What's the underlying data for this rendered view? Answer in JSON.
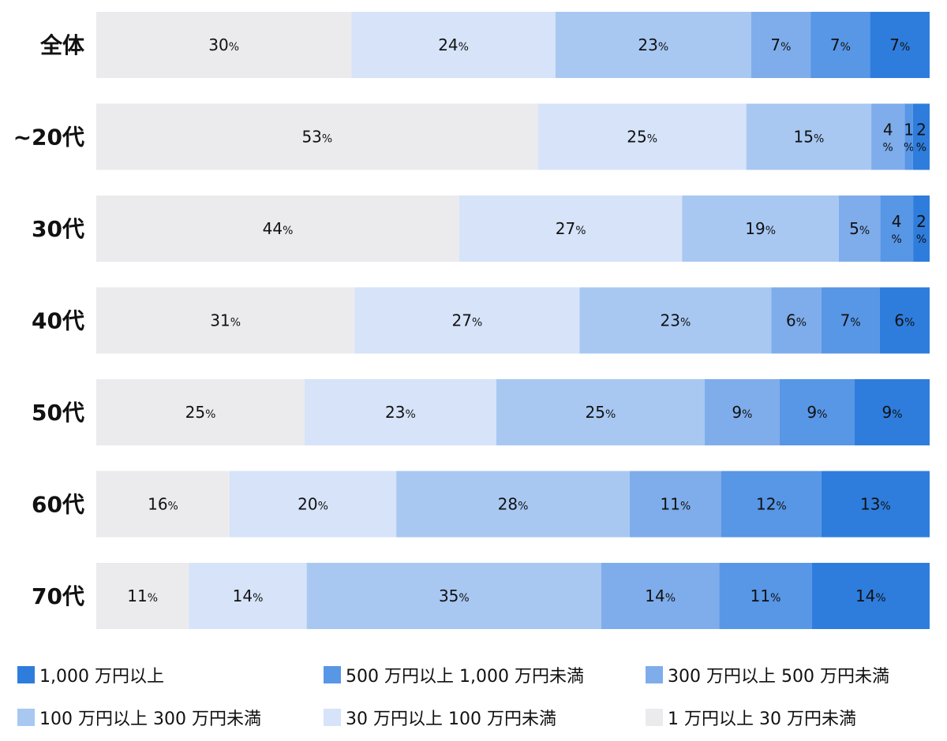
{
  "chart_data": {
    "type": "bar",
    "orientation": "horizontal",
    "stacked": true,
    "categories": [
      "全体",
      "~20代",
      "30代",
      "40代",
      "50代",
      "60代",
      "70代"
    ],
    "series": [
      {
        "name": "1万円以上30万円未満",
        "color": "#ebebed",
        "values": [
          30,
          53,
          44,
          31,
          25,
          16,
          11
        ]
      },
      {
        "name": "30万円以上100万円未満",
        "color": "#d6e3f9",
        "values": [
          24,
          25,
          27,
          27,
          23,
          20,
          14
        ]
      },
      {
        "name": "100万円以上300万円未満",
        "color": "#a8c8f2",
        "values": [
          23,
          15,
          19,
          23,
          25,
          28,
          35
        ]
      },
      {
        "name": "300万円以上500万円未満",
        "color": "#7fadeb",
        "values": [
          7,
          4,
          5,
          6,
          9,
          11,
          14
        ]
      },
      {
        "name": "500万円以上1,000万円未満",
        "color": "#5896e6",
        "values": [
          7,
          1,
          4,
          7,
          9,
          12,
          11
        ]
      },
      {
        "name": "1,000万円以上",
        "color": "#2e7ddd",
        "values": [
          7,
          2,
          2,
          6,
          9,
          13,
          14
        ]
      }
    ],
    "value_suffix": "%",
    "xlim": [
      0,
      100
    ],
    "grid": false,
    "legend_position": "bottom"
  },
  "legend": {
    "items": [
      {
        "label": "1,000 万円以上",
        "color": "#2e7ddd"
      },
      {
        "label": "500 万円以上 1,000 万円未満",
        "color": "#5896e6"
      },
      {
        "label": "300 万円以上 500 万円未満",
        "color": "#7fadeb"
      },
      {
        "label": "100 万円以上 300 万円未満",
        "color": "#a8c8f2"
      },
      {
        "label": "30 万円以上 100 万円未満",
        "color": "#d6e3f9"
      },
      {
        "label": "1 万円以上 30 万円未満",
        "color": "#ebebed"
      }
    ]
  }
}
